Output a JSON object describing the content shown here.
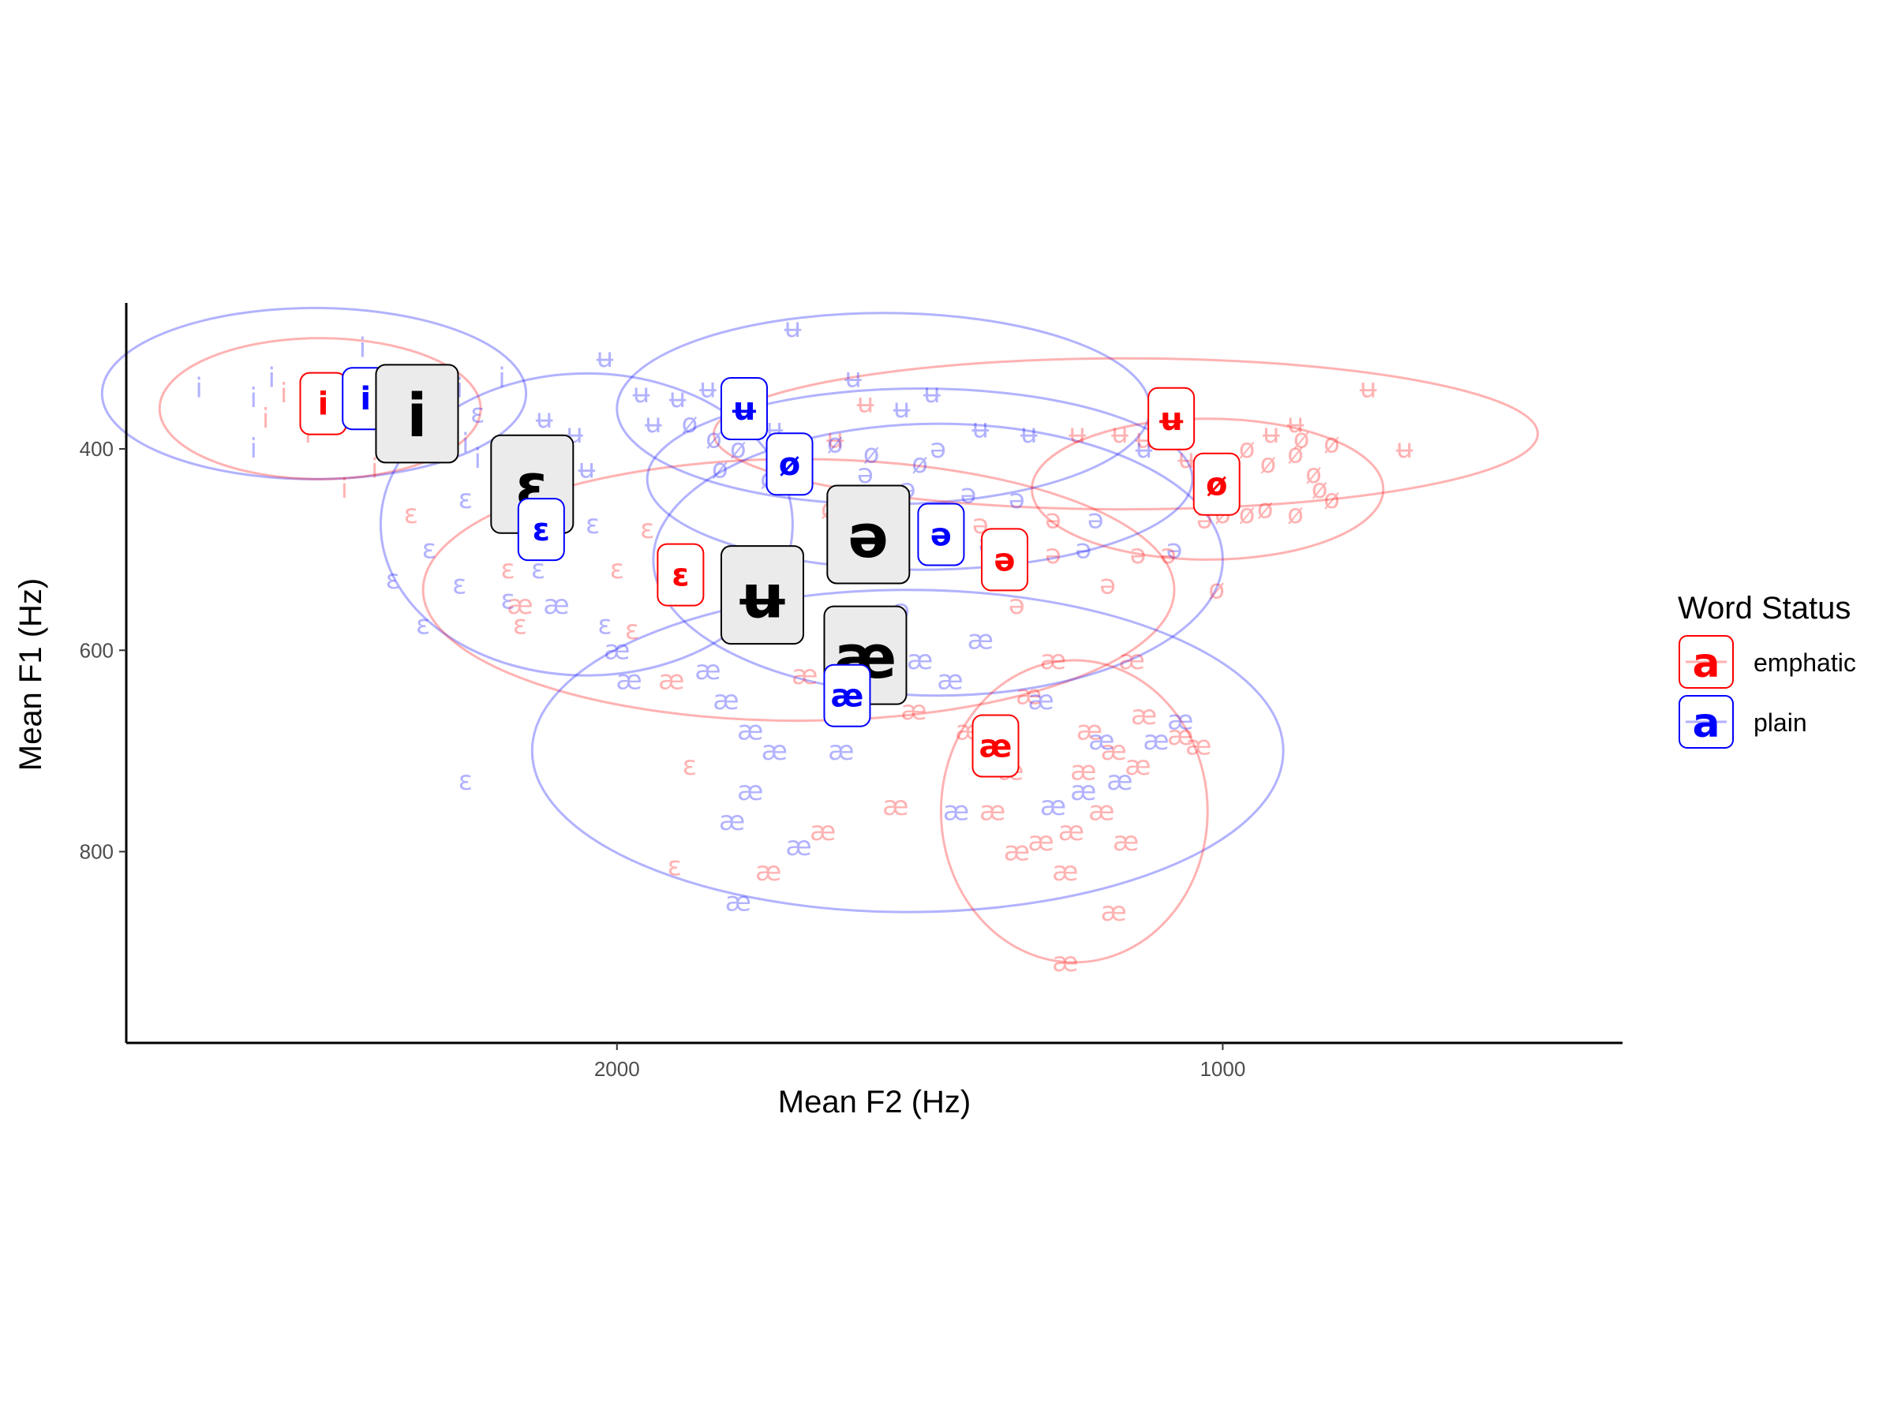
{
  "chart_data": {
    "type": "scatter",
    "title": "",
    "xlabel": "Mean F2 (Hz)",
    "ylabel": "Mean F1 (Hz)",
    "x_reversed": true,
    "y_reversed": true,
    "xlim": [
      2810,
      340
    ],
    "ylim": [
      255,
      990
    ],
    "x_ticks": [
      2000,
      1000
    ],
    "y_ticks": [
      400,
      600,
      800
    ],
    "grid": false,
    "legend": {
      "title": "Word Status",
      "placement": "right",
      "key_glyph": "a",
      "entries": [
        {
          "label": "emphatic",
          "color": "#FF0000"
        },
        {
          "label": "plain",
          "color": "#0000FF"
        }
      ]
    },
    "colors": {
      "emphatic": "#FF0000",
      "plain": "#0000FF",
      "overall": "#000000"
    },
    "ellipses": [
      {
        "group": "plain",
        "vowel": "i",
        "cx": 2500,
        "cy": 345,
        "rx": 350,
        "ry": 85
      },
      {
        "group": "emphatic",
        "vowel": "i",
        "cx": 2490,
        "cy": 360,
        "rx": 265,
        "ry": 70
      },
      {
        "group": "plain",
        "vowel": "ɛ",
        "cx": 2050,
        "cy": 475,
        "rx": 340,
        "ry": 150
      },
      {
        "group": "emphatic",
        "vowel": "ɛ",
        "cx": 1700,
        "cy": 540,
        "rx": 620,
        "ry": 130
      },
      {
        "group": "plain",
        "vowel": "ʉ",
        "cx": 1560,
        "cy": 360,
        "rx": 440,
        "ry": 95
      },
      {
        "group": "emphatic",
        "vowel": "ʉ",
        "cx": 1160,
        "cy": 385,
        "rx": 680,
        "ry": 75
      },
      {
        "group": "plain",
        "vowel": "ə",
        "cx": 1470,
        "cy": 510,
        "rx": 470,
        "ry": 135
      },
      {
        "group": "emphatic",
        "vowel": "ø",
        "cx": 1025,
        "cy": 440,
        "rx": 290,
        "ry": 70
      },
      {
        "group": "plain",
        "vowel": "æ",
        "cx": 1520,
        "cy": 700,
        "rx": 620,
        "ry": 160
      },
      {
        "group": "emphatic",
        "vowel": "æ",
        "cx": 1245,
        "cy": 760,
        "rx": 220,
        "ry": 150
      },
      {
        "group": "plain",
        "vowel": "ø",
        "cx": 1500,
        "cy": 430,
        "rx": 450,
        "ry": 90
      }
    ],
    "group_means": [
      {
        "group": "emphatic",
        "vowel": "i",
        "f2": 2485,
        "f1": 355
      },
      {
        "group": "plain",
        "vowel": "i",
        "f2": 2415,
        "f1": 350
      },
      {
        "group": "overall",
        "vowel": "i",
        "f2": 2330,
        "f1": 365
      },
      {
        "group": "overall",
        "vowel": "ɛ",
        "f2": 2140,
        "f1": 435
      },
      {
        "group": "plain",
        "vowel": "ɛ",
        "f2": 2125,
        "f1": 480
      },
      {
        "group": "emphatic",
        "vowel": "ɛ",
        "f2": 1895,
        "f1": 525
      },
      {
        "group": "plain",
        "vowel": "ʉ",
        "f2": 1790,
        "f1": 360
      },
      {
        "group": "plain",
        "vowel": "ø",
        "f2": 1715,
        "f1": 415
      },
      {
        "group": "overall",
        "vowel": "ʉ",
        "f2": 1760,
        "f1": 545
      },
      {
        "group": "overall",
        "vowel": "ə",
        "f2": 1585,
        "f1": 485
      },
      {
        "group": "plain",
        "vowel": "ə",
        "f2": 1465,
        "f1": 485
      },
      {
        "group": "emphatic",
        "vowel": "ə",
        "f2": 1360,
        "f1": 510
      },
      {
        "group": "overall",
        "vowel": "æ",
        "f2": 1590,
        "f1": 605
      },
      {
        "group": "plain",
        "vowel": "æ",
        "f2": 1620,
        "f1": 645
      },
      {
        "group": "emphatic",
        "vowel": "æ",
        "f2": 1375,
        "f1": 695
      },
      {
        "group": "emphatic",
        "vowel": "ʉ",
        "f2": 1085,
        "f1": 370
      },
      {
        "group": "emphatic",
        "vowel": "ø",
        "f2": 1010,
        "f1": 435
      }
    ],
    "tokens": [
      {
        "v": "i",
        "g": "plain",
        "f2": 2690,
        "f1": 340
      },
      {
        "v": "i",
        "g": "plain",
        "f2": 2600,
        "f1": 350
      },
      {
        "v": "i",
        "g": "plain",
        "f2": 2570,
        "f1": 330
      },
      {
        "v": "i",
        "g": "emphatic",
        "f2": 2580,
        "f1": 370
      },
      {
        "v": "i",
        "g": "emphatic",
        "f2": 2550,
        "f1": 345
      },
      {
        "v": "i",
        "g": "plain",
        "f2": 2520,
        "f1": 360
      },
      {
        "v": "i",
        "g": "emphatic",
        "f2": 2510,
        "f1": 385
      },
      {
        "v": "i",
        "g": "plain",
        "f2": 2460,
        "f1": 340
      },
      {
        "v": "i",
        "g": "plain",
        "f2": 2420,
        "f1": 300
      },
      {
        "v": "i",
        "g": "emphatic",
        "f2": 2400,
        "f1": 420
      },
      {
        "v": "i",
        "g": "plain",
        "f2": 2350,
        "f1": 330
      },
      {
        "v": "i",
        "g": "emphatic",
        "f2": 2320,
        "f1": 350
      },
      {
        "v": "i",
        "g": "plain",
        "f2": 2260,
        "f1": 340
      },
      {
        "v": "i",
        "g": "plain",
        "f2": 2250,
        "f1": 395
      },
      {
        "v": "i",
        "g": "plain",
        "f2": 2600,
        "f1": 400
      },
      {
        "v": "i",
        "g": "emphatic",
        "f2": 2450,
        "f1": 440
      },
      {
        "v": "i",
        "g": "plain",
        "f2": 2190,
        "f1": 330
      },
      {
        "v": "i",
        "g": "plain",
        "f2": 2230,
        "f1": 410
      },
      {
        "v": "ɛ",
        "g": "plain",
        "f2": 2250,
        "f1": 450
      },
      {
        "v": "ɛ",
        "g": "plain",
        "f2": 2310,
        "f1": 500
      },
      {
        "v": "ɛ",
        "g": "plain",
        "f2": 2370,
        "f1": 530
      },
      {
        "v": "ɛ",
        "g": "plain",
        "f2": 2260,
        "f1": 535
      },
      {
        "v": "ɛ",
        "g": "plain",
        "f2": 2180,
        "f1": 550
      },
      {
        "v": "ɛ",
        "g": "emphatic",
        "f2": 2180,
        "f1": 520
      },
      {
        "v": "ɛ",
        "g": "emphatic",
        "f2": 2340,
        "f1": 465
      },
      {
        "v": "ɛ",
        "g": "plain",
        "f2": 2320,
        "f1": 575
      },
      {
        "v": "ɛ",
        "g": "emphatic",
        "f2": 2160,
        "f1": 575
      },
      {
        "v": "ɛ",
        "g": "plain",
        "f2": 2020,
        "f1": 575
      },
      {
        "v": "ɛ",
        "g": "emphatic",
        "f2": 2000,
        "f1": 520
      },
      {
        "v": "ɛ",
        "g": "plain",
        "f2": 2040,
        "f1": 475
      },
      {
        "v": "ɛ",
        "g": "plain",
        "f2": 2230,
        "f1": 365
      },
      {
        "v": "ɛ",
        "g": "emphatic",
        "f2": 1975,
        "f1": 580
      },
      {
        "v": "ɛ",
        "g": "plain",
        "f2": 2250,
        "f1": 730
      },
      {
        "v": "ɛ",
        "g": "emphatic",
        "f2": 1880,
        "f1": 715
      },
      {
        "v": "ɛ",
        "g": "emphatic",
        "f2": 1905,
        "f1": 815
      },
      {
        "v": "ɛ",
        "g": "emphatic",
        "f2": 1950,
        "f1": 480
      },
      {
        "v": "ɛ",
        "g": "plain",
        "f2": 2130,
        "f1": 520
      },
      {
        "v": "ʉ",
        "g": "plain",
        "f2": 2120,
        "f1": 370
      },
      {
        "v": "ʉ",
        "g": "plain",
        "f2": 2070,
        "f1": 385
      },
      {
        "v": "ʉ",
        "g": "plain",
        "f2": 2050,
        "f1": 420
      },
      {
        "v": "ʉ",
        "g": "plain",
        "f2": 2020,
        "f1": 310
      },
      {
        "v": "ʉ",
        "g": "plain",
        "f2": 1960,
        "f1": 345
      },
      {
        "v": "ʉ",
        "g": "plain",
        "f2": 1940,
        "f1": 375
      },
      {
        "v": "ʉ",
        "g": "plain",
        "f2": 1900,
        "f1": 350
      },
      {
        "v": "ʉ",
        "g": "plain",
        "f2": 1850,
        "f1": 340
      },
      {
        "v": "ʉ",
        "g": "plain",
        "f2": 1780,
        "f1": 335
      },
      {
        "v": "ʉ",
        "g": "plain",
        "f2": 1740,
        "f1": 380
      },
      {
        "v": "ʉ",
        "g": "plain",
        "f2": 1710,
        "f1": 280
      },
      {
        "v": "ʉ",
        "g": "plain",
        "f2": 1610,
        "f1": 330
      },
      {
        "v": "ʉ",
        "g": "plain",
        "f2": 1530,
        "f1": 360
      },
      {
        "v": "ʉ",
        "g": "plain",
        "f2": 1480,
        "f1": 345
      },
      {
        "v": "ʉ",
        "g": "plain",
        "f2": 1400,
        "f1": 380
      },
      {
        "v": "ʉ",
        "g": "plain",
        "f2": 1320,
        "f1": 385
      },
      {
        "v": "ʉ",
        "g": "emphatic",
        "f2": 1640,
        "f1": 390
      },
      {
        "v": "ʉ",
        "g": "emphatic",
        "f2": 1590,
        "f1": 355
      },
      {
        "v": "ʉ",
        "g": "emphatic",
        "f2": 1240,
        "f1": 385
      },
      {
        "v": "ʉ",
        "g": "emphatic",
        "f2": 1170,
        "f1": 385
      },
      {
        "v": "ʉ",
        "g": "emphatic",
        "f2": 1130,
        "f1": 390
      },
      {
        "v": "ʉ",
        "g": "emphatic",
        "f2": 920,
        "f1": 385
      },
      {
        "v": "ʉ",
        "g": "emphatic",
        "f2": 880,
        "f1": 375
      },
      {
        "v": "ʉ",
        "g": "emphatic",
        "f2": 760,
        "f1": 340
      },
      {
        "v": "ʉ",
        "g": "emphatic",
        "f2": 700,
        "f1": 400
      },
      {
        "v": "ʉ",
        "g": "plain",
        "f2": 1130,
        "f1": 400
      },
      {
        "v": "ʉ",
        "g": "emphatic",
        "f2": 1060,
        "f1": 410
      },
      {
        "v": "ø",
        "g": "plain",
        "f2": 1880,
        "f1": 375
      },
      {
        "v": "ø",
        "g": "plain",
        "f2": 1840,
        "f1": 390
      },
      {
        "v": "ø",
        "g": "plain",
        "f2": 1800,
        "f1": 400
      },
      {
        "v": "ø",
        "g": "plain",
        "f2": 1640,
        "f1": 395
      },
      {
        "v": "ø",
        "g": "plain",
        "f2": 1750,
        "f1": 430
      },
      {
        "v": "ø",
        "g": "plain",
        "f2": 1580,
        "f1": 405
      },
      {
        "v": "ø",
        "g": "plain",
        "f2": 1500,
        "f1": 415
      },
      {
        "v": "ø",
        "g": "plain",
        "f2": 1830,
        "f1": 420
      },
      {
        "v": "ø",
        "g": "emphatic",
        "f2": 1650,
        "f1": 460
      },
      {
        "v": "ø",
        "g": "emphatic",
        "f2": 1560,
        "f1": 475
      },
      {
        "v": "ø",
        "g": "emphatic",
        "f2": 960,
        "f1": 400
      },
      {
        "v": "ø",
        "g": "emphatic",
        "f2": 925,
        "f1": 415
      },
      {
        "v": "ø",
        "g": "emphatic",
        "f2": 880,
        "f1": 405
      },
      {
        "v": "ø",
        "g": "emphatic",
        "f2": 820,
        "f1": 395
      },
      {
        "v": "ø",
        "g": "emphatic",
        "f2": 850,
        "f1": 425
      },
      {
        "v": "ø",
        "g": "emphatic",
        "f2": 820,
        "f1": 450
      },
      {
        "v": "ø",
        "g": "emphatic",
        "f2": 880,
        "f1": 465
      },
      {
        "v": "ø",
        "g": "emphatic",
        "f2": 930,
        "f1": 460
      },
      {
        "v": "ø",
        "g": "emphatic",
        "f2": 1000,
        "f1": 465
      },
      {
        "v": "ø",
        "g": "emphatic",
        "f2": 1010,
        "f1": 540
      },
      {
        "v": "ø",
        "g": "emphatic",
        "f2": 960,
        "f1": 465
      },
      {
        "v": "ø",
        "g": "emphatic",
        "f2": 870,
        "f1": 390
      },
      {
        "v": "ø",
        "g": "emphatic",
        "f2": 840,
        "f1": 440
      },
      {
        "v": "ə",
        "g": "plain",
        "f2": 1590,
        "f1": 425
      },
      {
        "v": "ə",
        "g": "plain",
        "f2": 1470,
        "f1": 400
      },
      {
        "v": "ə",
        "g": "plain",
        "f2": 1520,
        "f1": 440
      },
      {
        "v": "ə",
        "g": "plain",
        "f2": 1420,
        "f1": 445
      },
      {
        "v": "ə",
        "g": "plain",
        "f2": 1340,
        "f1": 450
      },
      {
        "v": "ə",
        "g": "plain",
        "f2": 1390,
        "f1": 495
      },
      {
        "v": "ə",
        "g": "plain",
        "f2": 1370,
        "f1": 520
      },
      {
        "v": "ə",
        "g": "plain",
        "f2": 1230,
        "f1": 500
      },
      {
        "v": "ə",
        "g": "plain",
        "f2": 1210,
        "f1": 470
      },
      {
        "v": "ə",
        "g": "plain",
        "f2": 1080,
        "f1": 500
      },
      {
        "v": "ə",
        "g": "plain",
        "f2": 1530,
        "f1": 560
      },
      {
        "v": "ə",
        "g": "plain",
        "f2": 1590,
        "f1": 520
      },
      {
        "v": "ə",
        "g": "emphatic",
        "f2": 1400,
        "f1": 475
      },
      {
        "v": "ə",
        "g": "emphatic",
        "f2": 1280,
        "f1": 470
      },
      {
        "v": "ə",
        "g": "emphatic",
        "f2": 1190,
        "f1": 535
      },
      {
        "v": "ə",
        "g": "emphatic",
        "f2": 1280,
        "f1": 505
      },
      {
        "v": "ə",
        "g": "emphatic",
        "f2": 1140,
        "f1": 505
      },
      {
        "v": "ə",
        "g": "emphatic",
        "f2": 1090,
        "f1": 505
      },
      {
        "v": "ə",
        "g": "emphatic",
        "f2": 1030,
        "f1": 470
      },
      {
        "v": "ə",
        "g": "emphatic",
        "f2": 1340,
        "f1": 555
      },
      {
        "v": "æ",
        "g": "plain",
        "f2": 2100,
        "f1": 555
      },
      {
        "v": "æ",
        "g": "plain",
        "f2": 2000,
        "f1": 600
      },
      {
        "v": "æ",
        "g": "plain",
        "f2": 1980,
        "f1": 630
      },
      {
        "v": "æ",
        "g": "emphatic",
        "f2": 2160,
        "f1": 555
      },
      {
        "v": "æ",
        "g": "emphatic",
        "f2": 1910,
        "f1": 630
      },
      {
        "v": "æ",
        "g": "plain",
        "f2": 1850,
        "f1": 620
      },
      {
        "v": "æ",
        "g": "plain",
        "f2": 1820,
        "f1": 650
      },
      {
        "v": "æ",
        "g": "plain",
        "f2": 1780,
        "f1": 680
      },
      {
        "v": "æ",
        "g": "plain",
        "f2": 1740,
        "f1": 700
      },
      {
        "v": "æ",
        "g": "plain",
        "f2": 1780,
        "f1": 740
      },
      {
        "v": "æ",
        "g": "plain",
        "f2": 1810,
        "f1": 770
      },
      {
        "v": "æ",
        "g": "plain",
        "f2": 1700,
        "f1": 795
      },
      {
        "v": "æ",
        "g": "plain",
        "f2": 1630,
        "f1": 700
      },
      {
        "v": "æ",
        "g": "plain",
        "f2": 1800,
        "f1": 850
      },
      {
        "v": "æ",
        "g": "emphatic",
        "f2": 1690,
        "f1": 625
      },
      {
        "v": "æ",
        "g": "emphatic",
        "f2": 1600,
        "f1": 650
      },
      {
        "v": "æ",
        "g": "emphatic",
        "f2": 1750,
        "f1": 820
      },
      {
        "v": "æ",
        "g": "emphatic",
        "f2": 1510,
        "f1": 660
      },
      {
        "v": "æ",
        "g": "emphatic",
        "f2": 1420,
        "f1": 680
      },
      {
        "v": "æ",
        "g": "emphatic",
        "f2": 1380,
        "f1": 760
      },
      {
        "v": "æ",
        "g": "emphatic",
        "f2": 1350,
        "f1": 720
      },
      {
        "v": "æ",
        "g": "emphatic",
        "f2": 1340,
        "f1": 800
      },
      {
        "v": "æ",
        "g": "emphatic",
        "f2": 1300,
        "f1": 790
      },
      {
        "v": "æ",
        "g": "emphatic",
        "f2": 1260,
        "f1": 820
      },
      {
        "v": "æ",
        "g": "emphatic",
        "f2": 1250,
        "f1": 780
      },
      {
        "v": "æ",
        "g": "emphatic",
        "f2": 1230,
        "f1": 720
      },
      {
        "v": "æ",
        "g": "emphatic",
        "f2": 1220,
        "f1": 680
      },
      {
        "v": "æ",
        "g": "emphatic",
        "f2": 1180,
        "f1": 700
      },
      {
        "v": "æ",
        "g": "emphatic",
        "f2": 1140,
        "f1": 715
      },
      {
        "v": "æ",
        "g": "emphatic",
        "f2": 1200,
        "f1": 760
      },
      {
        "v": "æ",
        "g": "emphatic",
        "f2": 1180,
        "f1": 860
      },
      {
        "v": "æ",
        "g": "emphatic",
        "f2": 1160,
        "f1": 790
      },
      {
        "v": "æ",
        "g": "emphatic",
        "f2": 1260,
        "f1": 910
      },
      {
        "v": "æ",
        "g": "emphatic",
        "f2": 1320,
        "f1": 645
      },
      {
        "v": "æ",
        "g": "emphatic",
        "f2": 1280,
        "f1": 610
      },
      {
        "v": "æ",
        "g": "emphatic",
        "f2": 1070,
        "f1": 685
      },
      {
        "v": "æ",
        "g": "emphatic",
        "f2": 1130,
        "f1": 665
      },
      {
        "v": "æ",
        "g": "emphatic",
        "f2": 1150,
        "f1": 610
      },
      {
        "v": "æ",
        "g": "plain",
        "f2": 1200,
        "f1": 690
      },
      {
        "v": "æ",
        "g": "plain",
        "f2": 1170,
        "f1": 730
      },
      {
        "v": "æ",
        "g": "plain",
        "f2": 1230,
        "f1": 740
      },
      {
        "v": "æ",
        "g": "plain",
        "f2": 1280,
        "f1": 755
      },
      {
        "v": "æ",
        "g": "plain",
        "f2": 1300,
        "f1": 650
      },
      {
        "v": "æ",
        "g": "plain",
        "f2": 1450,
        "f1": 630
      },
      {
        "v": "æ",
        "g": "plain",
        "f2": 1400,
        "f1": 590
      },
      {
        "v": "æ",
        "g": "plain",
        "f2": 1500,
        "f1": 610
      },
      {
        "v": "æ",
        "g": "plain",
        "f2": 1440,
        "f1": 760
      },
      {
        "v": "æ",
        "g": "plain",
        "f2": 1110,
        "f1": 690
      },
      {
        "v": "æ",
        "g": "plain",
        "f2": 1070,
        "f1": 670
      },
      {
        "v": "æ",
        "g": "emphatic",
        "f2": 1040,
        "f1": 695
      },
      {
        "v": "æ",
        "g": "emphatic",
        "f2": 1660,
        "f1": 780
      },
      {
        "v": "æ",
        "g": "emphatic",
        "f2": 1540,
        "f1": 755
      }
    ]
  }
}
